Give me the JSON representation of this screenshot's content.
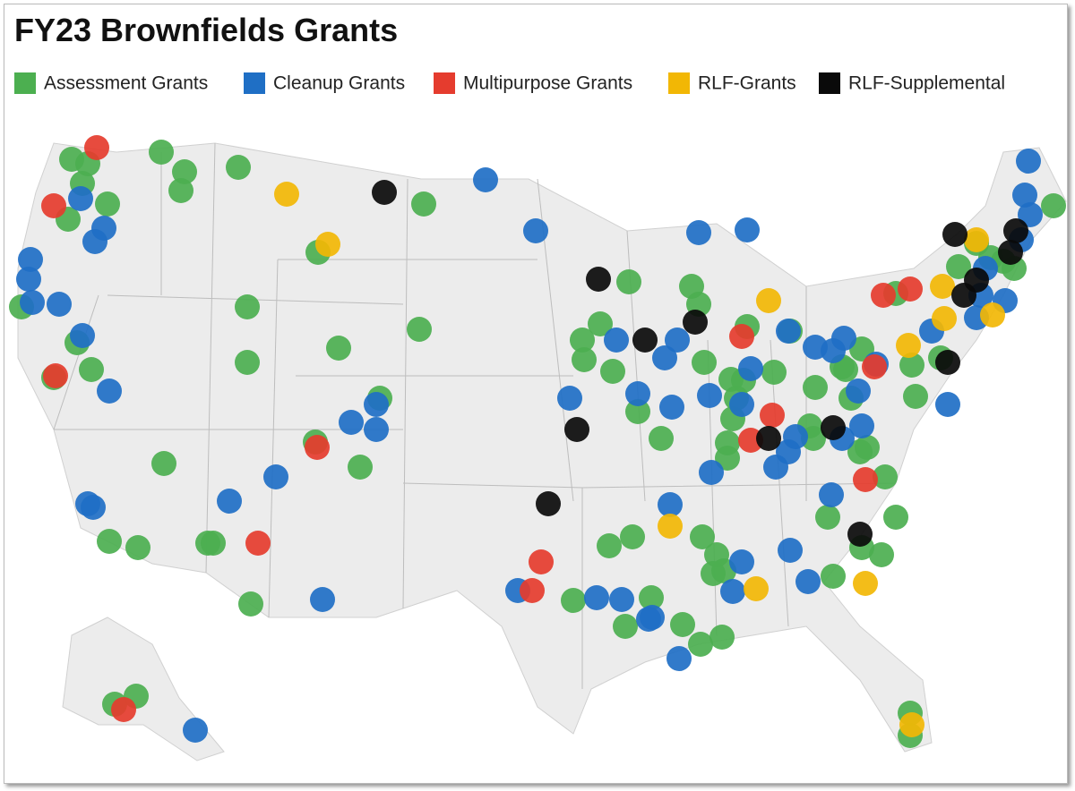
{
  "title": "FY23 Brownfields Grants",
  "legend": [
    {
      "label": "Assessment Grants",
      "color": "#4caf50"
    },
    {
      "label": "Cleanup Grants",
      "color": "#1f6fc5"
    },
    {
      "label": "Multipurpose Grants",
      "color": "#e53c2e"
    },
    {
      "label": "RLF-Grants",
      "color": "#f2b705"
    },
    {
      "label": "RLF-Supplemental",
      "color": "#0a0a0a"
    }
  ]
}
